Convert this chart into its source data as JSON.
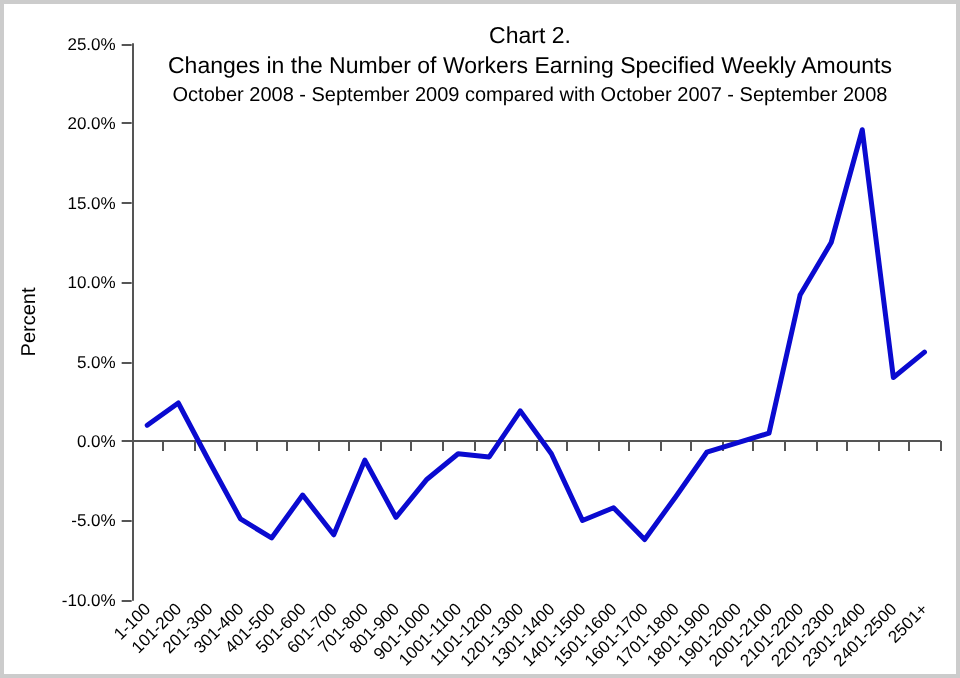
{
  "chart_data": {
    "type": "line",
    "title": "Chart 2.\nChanges in the Number of Workers Earning Specified Weekly Amounts",
    "subtitle": "October 2008 - September 2009 compared with October 2007 - September 2008",
    "ylabel": "Percent",
    "categories": [
      "1-100",
      "101-200",
      "201-300",
      "301-400",
      "401-500",
      "501-600",
      "601-700",
      "701-800",
      "801-900",
      "901-1000",
      "1001-1100",
      "1101-1200",
      "1201-1300",
      "1301-1400",
      "1401-1500",
      "1501-1600",
      "1601-1700",
      "1701-1800",
      "1801-1900",
      "1901-2000",
      "2001-2100",
      "2101-2200",
      "2201-2300",
      "2301-2400",
      "2401-2500",
      "2501+"
    ],
    "series": [
      {
        "color": "#0a0ad0",
        "values": [
          1.0,
          2.4,
          -1.3,
          -4.9,
          -6.1,
          -3.4,
          -5.9,
          -1.2,
          -4.8,
          -2.4,
          -0.8,
          -1.0,
          1.9,
          -0.8,
          -5.0,
          -4.2,
          -6.2,
          -3.5,
          -0.7,
          -0.1,
          0.5,
          9.2,
          12.5,
          19.6,
          4.0,
          5.6
        ]
      }
    ],
    "ylim": [
      -10,
      25
    ],
    "yticks": [
      {
        "value": -10,
        "label": "-10.0%"
      },
      {
        "value": -5,
        "label": "-5.0%"
      },
      {
        "value": 0,
        "label": "0.0%"
      },
      {
        "value": 5,
        "label": "5.0%"
      },
      {
        "value": 10,
        "label": "10.0%"
      },
      {
        "value": 15,
        "label": "15.0%"
      },
      {
        "value": 20,
        "label": "20.0%"
      },
      {
        "value": 25,
        "label": "25.0%"
      }
    ],
    "marker": "none",
    "line_style": "solid"
  }
}
